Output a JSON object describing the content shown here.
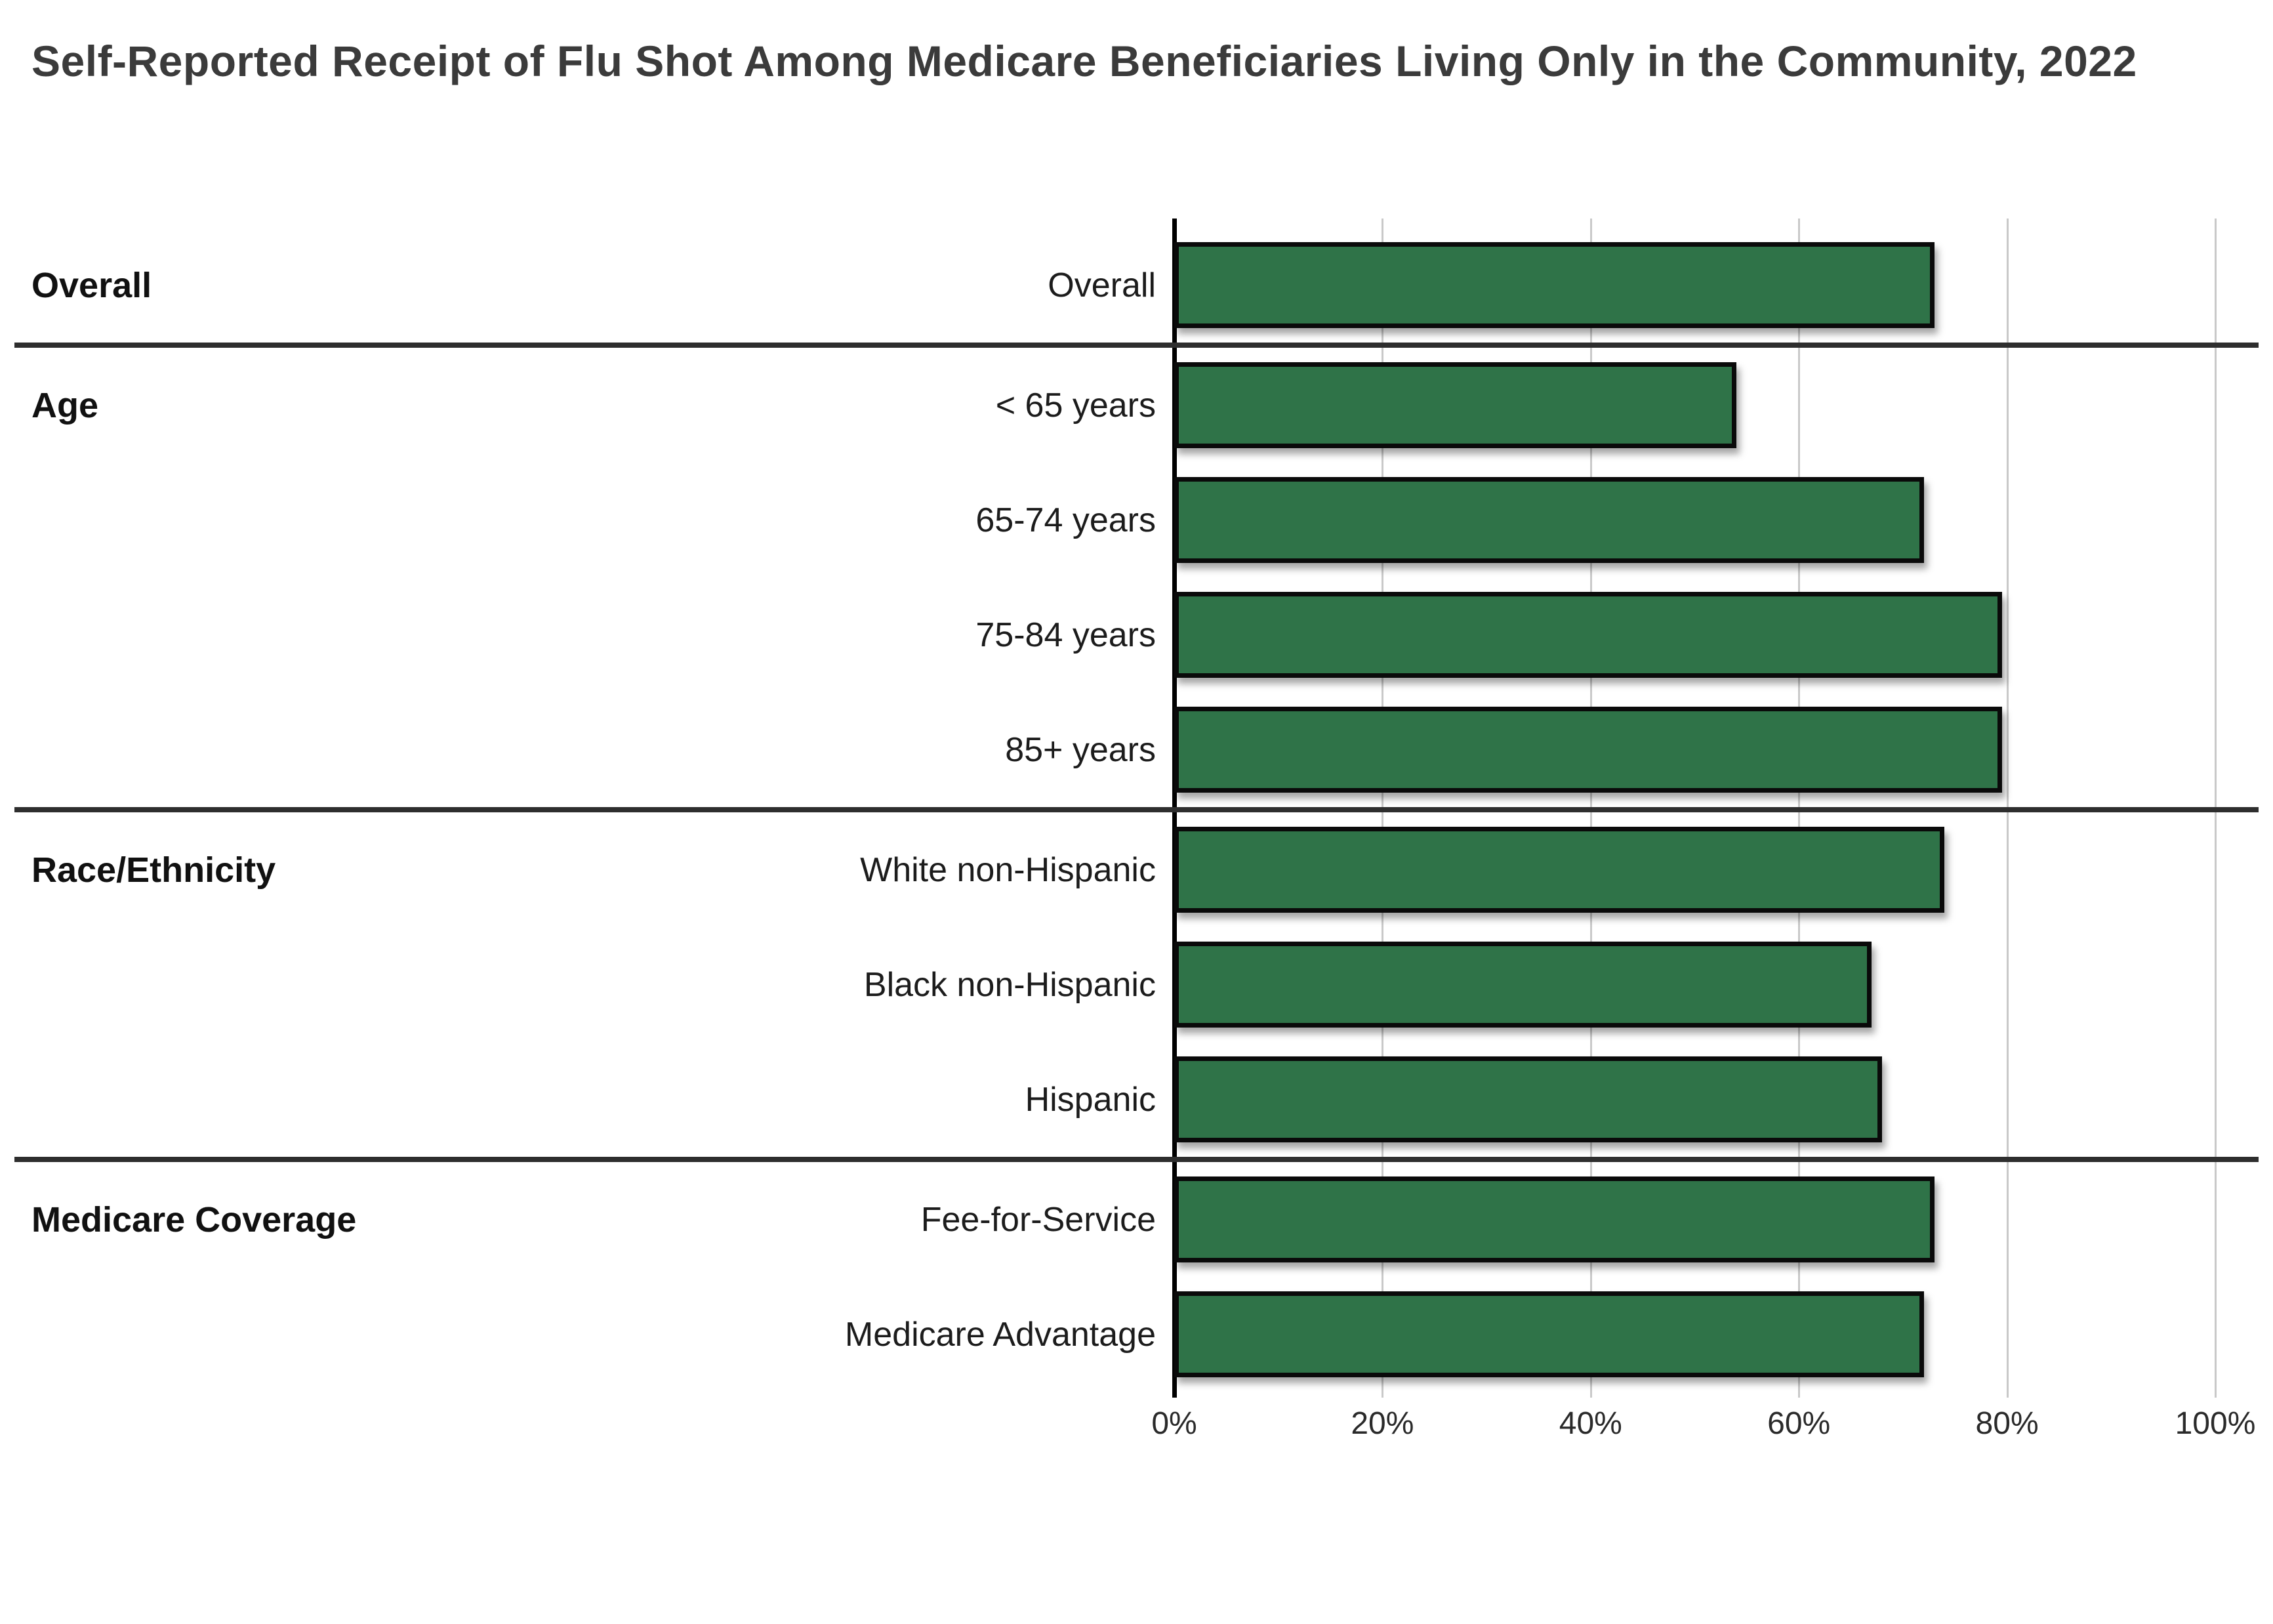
{
  "title": "Self-Reported Receipt of Flu Shot Among Medicare Beneficiaries Living Only in the Community, 2022",
  "colors": {
    "bar_fill": "#2f7348",
    "bar_border": "#0a0a0a",
    "gridline": "#c9c9c9",
    "axis_line": "#000000",
    "separator": "#2e2e2e",
    "title_text": "#3b3b3b"
  },
  "chart_data": {
    "type": "bar",
    "orientation": "horizontal",
    "title": "Self-Reported Receipt of Flu Shot Among Medicare Beneficiaries Living Only in the Community, 2022",
    "xlabel": "",
    "ylabel": "",
    "unit": "%",
    "xlim": [
      0,
      100
    ],
    "xticks": [
      "0%",
      "20%",
      "40%",
      "60%",
      "80%",
      "100%"
    ],
    "grid": true,
    "legend": false,
    "groups": [
      {
        "label": "Overall",
        "rows": [
          {
            "label": "Overall",
            "value": 73
          }
        ]
      },
      {
        "label": "Age",
        "rows": [
          {
            "label": "< 65 years",
            "value": 54
          },
          {
            "label": "65-74 years",
            "value": 72
          },
          {
            "label": "75-84 years",
            "value": 79.5
          },
          {
            "label": "85+ years",
            "value": 79.5
          }
        ]
      },
      {
        "label": "Race/Ethnicity",
        "rows": [
          {
            "label": "White non-Hispanic",
            "value": 74
          },
          {
            "label": "Black non-Hispanic",
            "value": 67
          },
          {
            "label": "Hispanic",
            "value": 68
          }
        ]
      },
      {
        "label": "Medicare Coverage",
        "rows": [
          {
            "label": "Fee-for-Service",
            "value": 73
          },
          {
            "label": "Medicare Advantage",
            "value": 72
          }
        ]
      }
    ]
  }
}
